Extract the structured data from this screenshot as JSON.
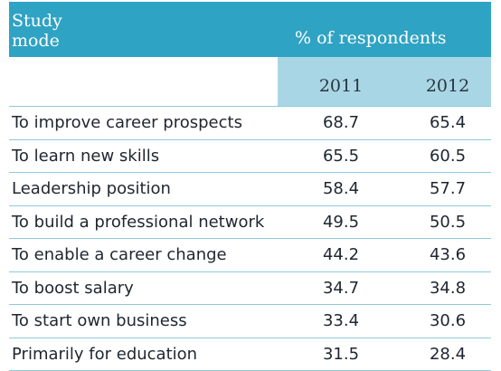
{
  "header": {
    "title": "Study\nmode",
    "group_label": "% of respondents",
    "years": [
      "2011",
      "2012"
    ]
  },
  "rows": [
    {
      "label": "To improve career prospects",
      "v2011": "68.7",
      "v2012": "65.4"
    },
    {
      "label": "To learn new skills",
      "v2011": "65.5",
      "v2012": "60.5"
    },
    {
      "label": "Leadership position",
      "v2011": "58.4",
      "v2012": "57.7"
    },
    {
      "label": "To build a professional network",
      "v2011": "49.5",
      "v2012": "50.5"
    },
    {
      "label": "To enable a career change",
      "v2011": "44.2",
      "v2012": "43.6"
    },
    {
      "label": "To boost salary",
      "v2011": "34.7",
      "v2012": "34.8"
    },
    {
      "label": "To start own business",
      "v2011": "33.4",
      "v2012": "30.6"
    },
    {
      "label": "Primarily for education",
      "v2011": "31.5",
      "v2012": "28.4"
    }
  ],
  "colors": {
    "header_bg": "#2fa3c3",
    "subheader_bg": "#a9d6e4",
    "rule": "#8fc9dc"
  }
}
